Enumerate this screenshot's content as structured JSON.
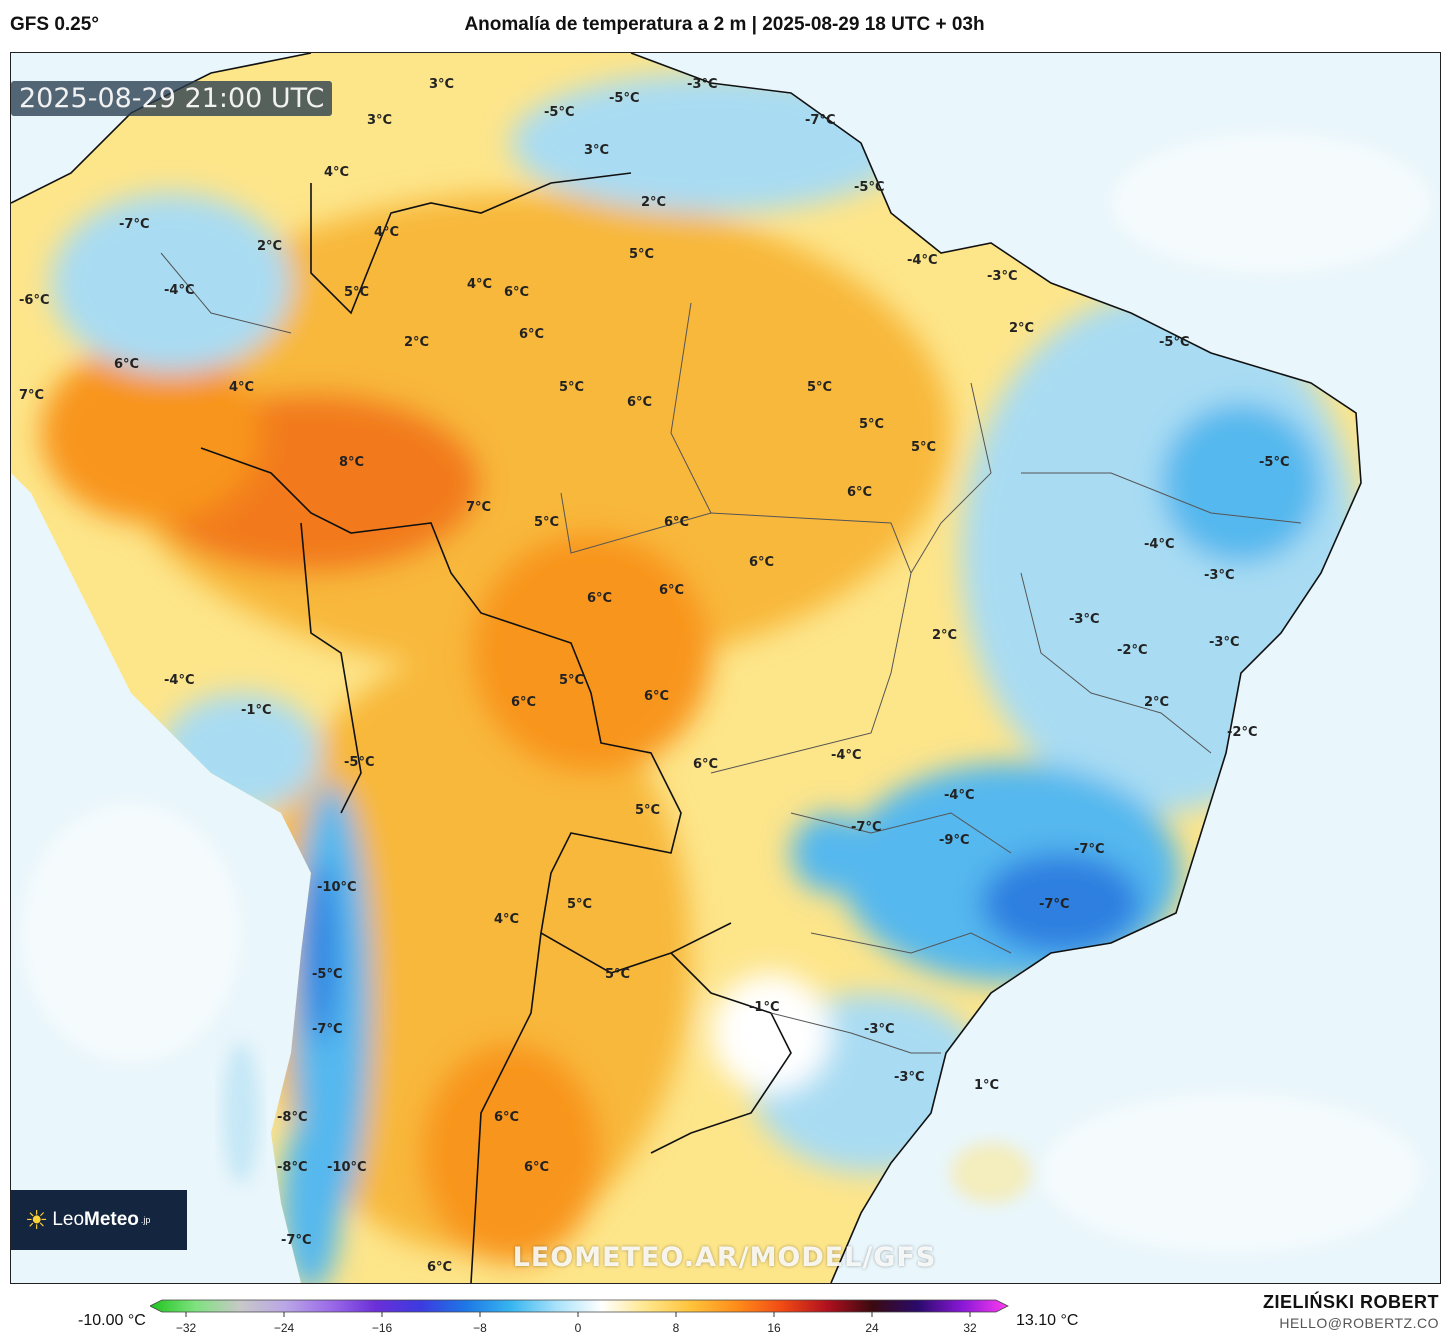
{
  "header": {
    "model": "GFS 0.25°",
    "title": "Anomalía de temperatura a 2 m | 2025-08-29 18 UTC + 03h"
  },
  "map": {
    "valid_time": "2025-08-29 21:00 UTC",
    "watermark": "LEOMETEO.AR/MODEL/GFS",
    "contour_labels": [
      "3°C",
      "-3°C",
      "-5°C",
      "-5°C",
      "-7°C",
      "3°C",
      "3°C",
      "-5°C",
      "4°C",
      "2°C",
      "4°C",
      "-7°C",
      "2°C",
      "5°C",
      "-4°C",
      "-3°C",
      "-4°C",
      "4°C",
      "6°C",
      "5°C",
      "-6°C",
      "6°C",
      "2°C",
      "2°C",
      "6°C",
      "-5°C",
      "5°C",
      "4°C",
      "6°C",
      "5°C",
      "7°C",
      "5°C",
      "8°C",
      "5°C",
      "-5°C",
      "7°C",
      "6°C",
      "5°C",
      "6°C",
      "6°C",
      "-4°C",
      "6°C",
      "-3°C",
      "6°C",
      "-3°C",
      "2°C",
      "-2°C",
      "-3°C",
      "-4°C",
      "5°C",
      "6°C",
      "2°C",
      "-1°C",
      "6°C",
      "-2°C",
      "-5°C",
      "6°C",
      "-4°C",
      "-4°C",
      "5°C",
      "-7°C",
      "-9°C",
      "-7°C",
      "-10°C",
      "5°C",
      "-7°C",
      "4°C",
      "5°C",
      "-5°C",
      "-1°C",
      "-7°C",
      "-3°C",
      "-3°C",
      "1°C",
      "-8°C",
      "6°C",
      "-8°C",
      "-10°C",
      "6°C",
      "-7°C",
      "6°C"
    ],
    "colors": {
      "land_hot": "#f27a1b",
      "land_warm": "#f8b83a",
      "land_mild": "#fde58a",
      "land_cool": "#a9dcf3",
      "land_cold": "#55b8ee",
      "land_very_cold": "#2f7fe0",
      "ocean": "#e9f6fb"
    }
  },
  "logo": {
    "brand_light": "Leo",
    "brand_bold": "Meteo",
    "suffix": ".jp"
  },
  "colorbar": {
    "min_label": "-10.00 °C",
    "max_label": "13.10 °C",
    "ticks": [
      "−32",
      "−24",
      "−16",
      "−8",
      "0",
      "8",
      "16",
      "24",
      "32"
    ],
    "stops": [
      "#1ec41e",
      "#7ee27e",
      "#c8c8c8",
      "#b9a6e6",
      "#9b6be8",
      "#6b2fd8",
      "#3b3be0",
      "#1e78e6",
      "#38b6f0",
      "#a8e2fa",
      "#ffffff",
      "#ffe68a",
      "#ffc23a",
      "#ff8c1a",
      "#f04a14",
      "#b0101e",
      "#3a0a10",
      "#2a0a6a",
      "#8a18d8",
      "#ff3cf0"
    ]
  },
  "credits": {
    "name": "ZIELIŃSKI ROBERT",
    "email": "HELLO@ROBERTZ.CO"
  }
}
